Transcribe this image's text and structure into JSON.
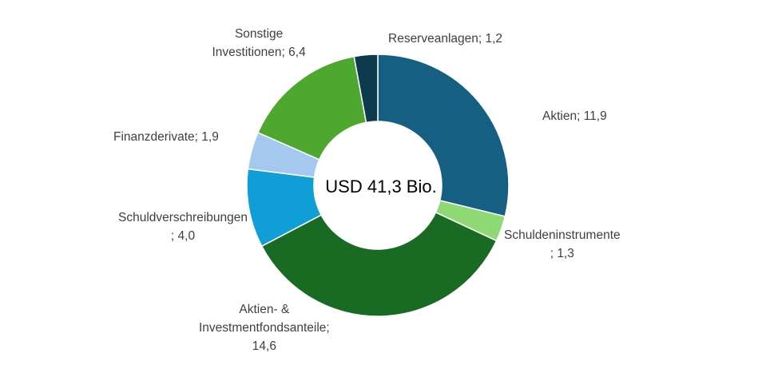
{
  "chart_data": {
    "type": "pie",
    "variant": "donut",
    "center_text": "USD 41,3 Bio.",
    "slices": [
      {
        "label_lines": [
          "Aktien; 11,9"
        ],
        "value": 11.9,
        "color": "#155f82"
      },
      {
        "label_lines": [
          "Schuldeninstrumente",
          "; 1,3"
        ],
        "value": 1.3,
        "color": "#8ed973"
      },
      {
        "label_lines": [
          "Aktien- &",
          "Investmentfondsanteile;",
          "14,6"
        ],
        "value": 14.6,
        "color": "#196b24"
      },
      {
        "label_lines": [
          "Schuldverschreibungen",
          "; 4,0"
        ],
        "value": 4.0,
        "color": "#0f9ed5"
      },
      {
        "label_lines": [
          "Finanzderivate; 1,9"
        ],
        "value": 1.9,
        "color": "#a5c9ee"
      },
      {
        "label_lines": [
          "Sonstige",
          "Investitionen; 6,4"
        ],
        "value": 6.4,
        "color": "#4ea72e"
      },
      {
        "label_lines": [
          "Reserveanlagen; 1,2"
        ],
        "value": 1.2,
        "color": "#0d3a4d"
      }
    ],
    "legend": "none"
  }
}
